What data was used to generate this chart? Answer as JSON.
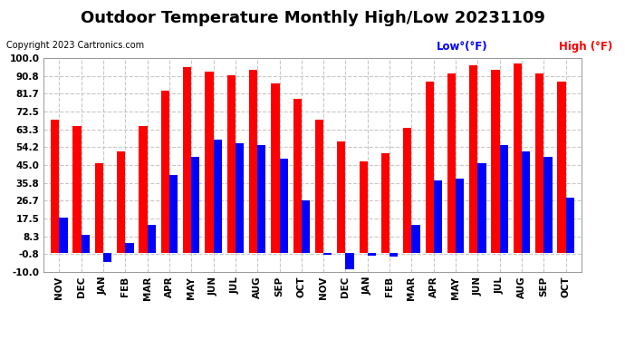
{
  "title": "Outdoor Temperature Monthly High/Low 20231109",
  "copyright": "Copyright 2023 Cartronics.com",
  "legend_low": "Low°(°F)",
  "legend_high": "High (°F)",
  "months": [
    "NOV",
    "DEC",
    "JAN",
    "FEB",
    "MAR",
    "APR",
    "MAY",
    "JUN",
    "JUL",
    "AUG",
    "SEP",
    "OCT",
    "NOV",
    "DEC",
    "JAN",
    "FEB",
    "MAR",
    "APR",
    "MAY",
    "JUN",
    "JUL",
    "AUG",
    "SEP",
    "OCT"
  ],
  "high_values": [
    68.0,
    65.0,
    46.0,
    52.0,
    65.0,
    83.0,
    95.0,
    93.0,
    91.0,
    94.0,
    87.0,
    79.0,
    68.0,
    57.0,
    47.0,
    51.0,
    64.0,
    88.0,
    92.0,
    96.0,
    94.0,
    97.0,
    92.0,
    88.0
  ],
  "low_values": [
    18.0,
    9.0,
    -5.0,
    5.0,
    14.0,
    40.0,
    49.0,
    58.0,
    56.0,
    55.0,
    48.0,
    27.0,
    -1.0,
    -8.5,
    -1.5,
    -2.0,
    14.0,
    37.0,
    38.0,
    46.0,
    55.0,
    52.0,
    49.0,
    28.0
  ],
  "high_color": "#ff0000",
  "low_color": "#0000ff",
  "bar_width": 0.38,
  "ylim": [
    -10.0,
    100.0
  ],
  "yticks": [
    -10.0,
    -0.8,
    8.3,
    17.5,
    26.7,
    35.8,
    45.0,
    54.2,
    63.3,
    72.5,
    81.7,
    90.8,
    100.0
  ],
  "background_color": "#ffffff",
  "grid_color": "#c8c8c8",
  "title_fontsize": 13,
  "axis_fontsize": 7.5,
  "legend_fontsize": 8.5,
  "copyright_fontsize": 7
}
